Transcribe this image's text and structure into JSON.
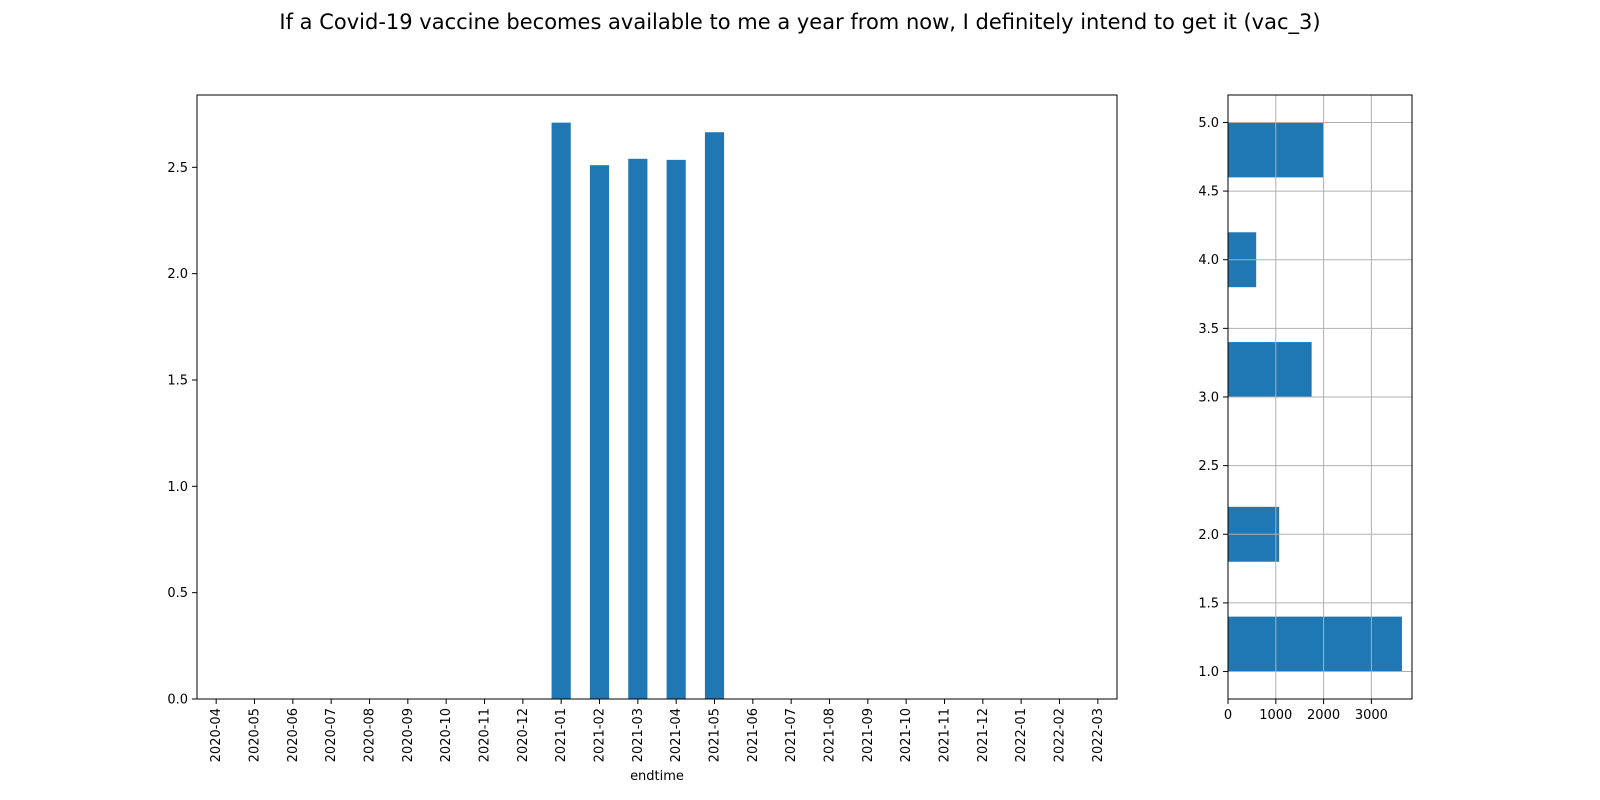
{
  "title": "If a Covid-19 vaccine becomes available to me a year from now, I definitely intend to get it (vac_3)",
  "colors": {
    "bar": "#1f77b4",
    "grid": "#b0b0b0",
    "axis": "#000000"
  },
  "chart_data": [
    {
      "type": "bar",
      "xlabel": "endtime",
      "ylabel": "",
      "ylim": [
        0,
        2.84
      ],
      "yticks": [
        0.0,
        0.5,
        1.0,
        1.5,
        2.0,
        2.5
      ],
      "ytick_labels": [
        "0.0",
        "0.5",
        "1.0",
        "1.5",
        "2.0",
        "2.5"
      ],
      "grid": false,
      "categories": [
        "2020-04",
        "2020-05",
        "2020-06",
        "2020-07",
        "2020-08",
        "2020-09",
        "2020-10",
        "2020-11",
        "2020-12",
        "2021-01",
        "2021-02",
        "2021-03",
        "2021-04",
        "2021-05",
        "2021-06",
        "2021-07",
        "2021-08",
        "2021-09",
        "2021-10",
        "2021-11",
        "2021-12",
        "2022-01",
        "2022-02",
        "2022-03"
      ],
      "values": [
        0,
        0,
        0,
        0,
        0,
        0,
        0,
        0,
        0,
        2.71,
        2.51,
        2.54,
        2.535,
        2.665,
        0,
        0,
        0,
        0,
        0,
        0,
        0,
        0,
        0,
        0
      ]
    },
    {
      "type": "bar",
      "orientation": "horizontal",
      "xlabel": "",
      "ylabel": "",
      "xlim": [
        0,
        3850
      ],
      "ylim": [
        0.8,
        5.2
      ],
      "xticks": [
        0,
        1000,
        2000,
        3000
      ],
      "xtick_labels": [
        "0",
        "1000",
        "2000",
        "3000"
      ],
      "yticks": [
        1.0,
        1.5,
        2.0,
        2.5,
        3.0,
        3.5,
        4.0,
        4.5,
        5.0
      ],
      "ytick_labels": [
        "1.0",
        "1.5",
        "2.0",
        "2.5",
        "3.0",
        "3.5",
        "4.0",
        "4.5",
        "5.0"
      ],
      "grid": true,
      "bins": [
        {
          "from": 1.0,
          "to": 1.4,
          "count": 3640
        },
        {
          "from": 1.8,
          "to": 2.2,
          "count": 1070
        },
        {
          "from": 3.0,
          "to": 3.4,
          "count": 1750
        },
        {
          "from": 3.8,
          "to": 4.2,
          "count": 590
        },
        {
          "from": 4.6,
          "to": 5.0,
          "count": 1990
        }
      ]
    }
  ]
}
